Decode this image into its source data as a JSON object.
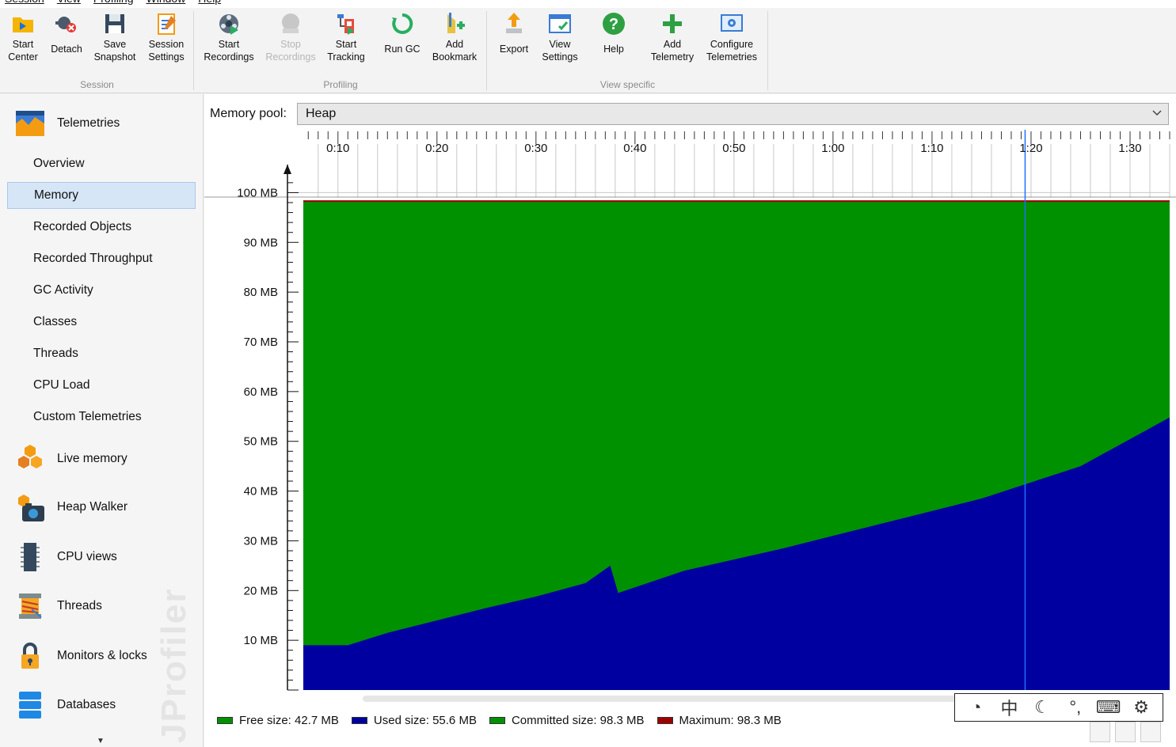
{
  "menu": [
    "Session",
    "View",
    "Profiling",
    "Window",
    "Help"
  ],
  "toolbar": {
    "groups": [
      {
        "label": "Session",
        "buttons": [
          {
            "label": "Start\nCenter",
            "icon": "start-center-icon"
          },
          {
            "label": "Detach",
            "icon": "detach-icon"
          },
          {
            "label": "Save\nSnapshot",
            "icon": "save-snapshot-icon"
          },
          {
            "label": "Session\nSettings",
            "icon": "session-settings-icon"
          }
        ]
      },
      {
        "label": "Profiling",
        "buttons": [
          {
            "label": "Start\nRecordings",
            "icon": "start-recordings-icon"
          },
          {
            "label": "Stop\nRecordings",
            "icon": "stop-recordings-icon",
            "disabled": true
          },
          {
            "label": "Start\nTracking",
            "icon": "start-tracking-icon"
          },
          {
            "label": "Run GC",
            "icon": "run-gc-icon"
          },
          {
            "label": "Add\nBookmark",
            "icon": "add-bookmark-icon"
          }
        ]
      },
      {
        "label": "View specific",
        "buttons": [
          {
            "label": "Export",
            "icon": "export-icon"
          },
          {
            "label": "View\nSettings",
            "icon": "view-settings-icon"
          },
          {
            "label": "Help",
            "icon": "help-icon"
          },
          {
            "label": "Add\nTelemetry",
            "icon": "add-telemetry-icon"
          },
          {
            "label": "Configure\nTelemetries",
            "icon": "configure-telemetries-icon"
          }
        ]
      }
    ]
  },
  "sidebar": {
    "sections": [
      {
        "label": "Telemetries",
        "icon": "telemetries-icon"
      },
      {
        "label": "Live memory",
        "icon": "live-memory-icon"
      },
      {
        "label": "Heap Walker",
        "icon": "heap-walker-icon"
      },
      {
        "label": "CPU views",
        "icon": "cpu-views-icon"
      },
      {
        "label": "Threads",
        "icon": "threads-icon"
      },
      {
        "label": "Monitors & locks",
        "icon": "monitors-locks-icon"
      },
      {
        "label": "Databases",
        "icon": "databases-icon"
      }
    ],
    "telemetry_items": [
      "Overview",
      "Memory",
      "Recorded Objects",
      "Recorded Throughput",
      "GC Activity",
      "Classes",
      "Threads",
      "CPU Load",
      "Custom Telemetries"
    ],
    "active_item": "Memory",
    "watermark": "JProfiler"
  },
  "memory_pool": {
    "label": "Memory pool:",
    "selected": "Heap"
  },
  "chart_data": {
    "type": "area",
    "x_unit": "time (m:ss)",
    "x_ticks": [
      "0:10",
      "0:20",
      "0:30",
      "0:40",
      "0:50",
      "1:00",
      "1:10",
      "1:20",
      "1:30"
    ],
    "xlim": [
      6.5,
      94
    ],
    "y_ticks": [
      "10 MB",
      "20 MB",
      "30 MB",
      "40 MB",
      "50 MB",
      "60 MB",
      "70 MB",
      "80 MB",
      "90 MB",
      "100 MB"
    ],
    "ylim": [
      0,
      100
    ],
    "series": [
      {
        "name": "Free size",
        "color": "#009100"
      },
      {
        "name": "Used size",
        "color": "#0000a0",
        "x": [
          6.5,
          11,
          15,
          20,
          25,
          30,
          35,
          37.5,
          38.3,
          45,
          55,
          65,
          75,
          85,
          94
        ],
        "y": [
          9,
          9,
          11.5,
          14,
          16.5,
          18.8,
          21.5,
          25,
          19.5,
          24,
          28.5,
          33.5,
          38.5,
          45,
          54.8
        ]
      },
      {
        "name": "Committed size",
        "color": "#009100",
        "y_const": 98.3
      },
      {
        "name": "Maximum",
        "color": "#a00000",
        "y_const": 98.3
      }
    ],
    "cursor_x": 79.4,
    "grid": true,
    "legend": [
      {
        "text": "Free size: 42.7 MB",
        "color": "#009100"
      },
      {
        "text": "Used size: 55.6 MB",
        "color": "#0000a0"
      },
      {
        "text": "Committed size: 98.3 MB",
        "color": "#009100"
      },
      {
        "text": "Maximum: 98.3 MB",
        "color": "#a00000"
      }
    ],
    "legend_placement": "bottom-left"
  },
  "ime": {
    "chinese": "中",
    "icons": [
      "gauge-icon",
      "moon-icon",
      "punctuation-icon",
      "keyboard-icon",
      "gear-icon"
    ]
  }
}
